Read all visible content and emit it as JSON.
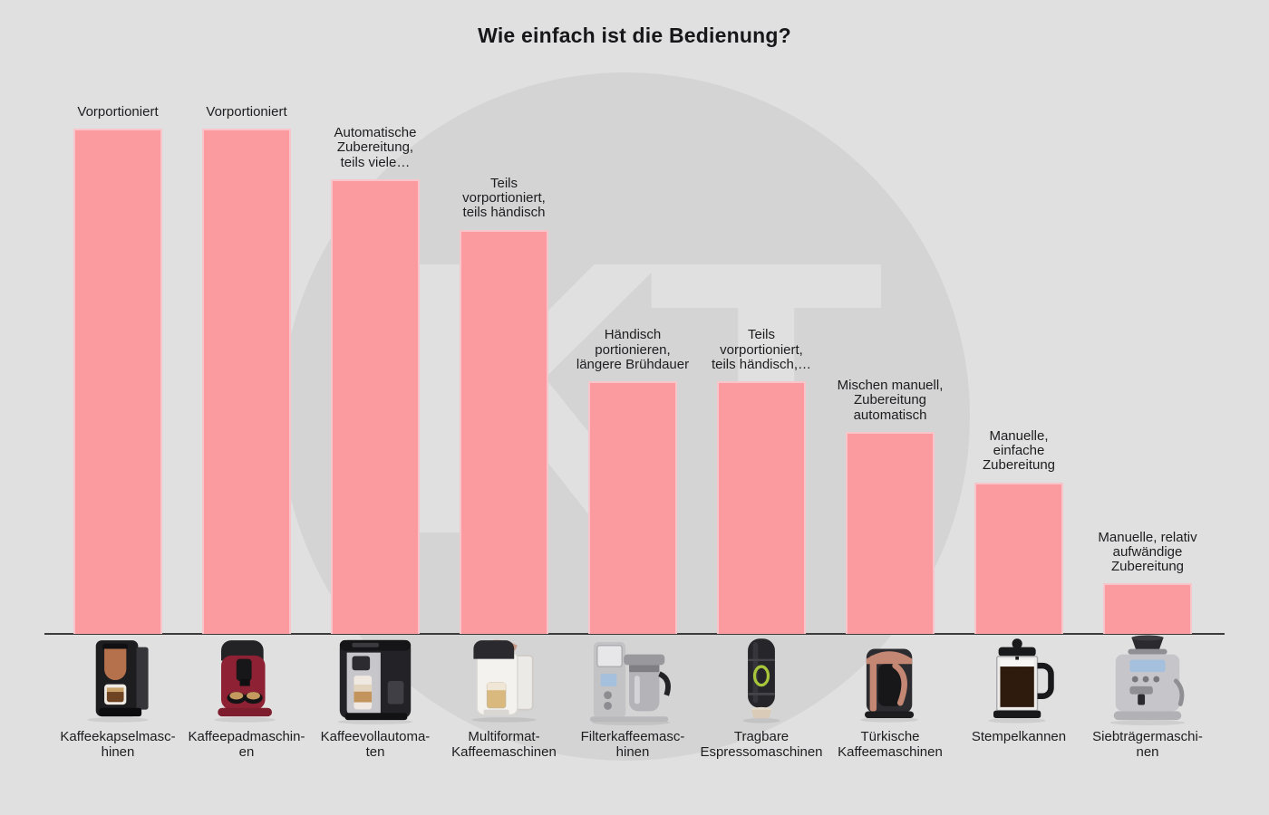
{
  "chart_data": {
    "type": "bar",
    "title": "Wie einfach ist die Bedienung?",
    "categories": [
      "Kaffeekapselmaschinen",
      "Kaffeepadmaschinen",
      "Kaffeevollautomaten",
      "Multiformat-Kaffeemaschinen",
      "Filterkaffeemaschinen",
      "Tragbare Espressomaschinen",
      "Türkische Kaffeemaschinen",
      "Stempelkannen",
      "Siebträgermaschinen"
    ],
    "categories_display": [
      "Kaffeekapselmasc-\nhinen",
      "Kaffeepadmaschin-\nen",
      "Kaffeevollautoma-\nten",
      "Multiformat-\nKaffeemaschinen",
      "Filterkaffeemasc-\nhinen",
      "Tragbare\nEspressomaschinen",
      "Türkische\nKaffeemaschinen",
      "Stempelkannen",
      "Siebträgermaschi-\nnen"
    ],
    "bar_labels": [
      "Vorportioniert",
      "Vorportioniert",
      "Automatische\nZubereitung,\nteils viele…",
      "Teils\nvorportioniert,\nteils händisch",
      "Händisch\nportionieren,\nlängere Brühdauer",
      "Teils\nvorportioniert,\nteils händisch,…",
      "Mischen manuell,\nZubereitung\nautomatisch",
      "Manuelle,\neinfache\nZubereitung",
      "Manuelle, relativ\naufwändige\nZubereitung"
    ],
    "values": [
      10,
      10,
      9,
      8,
      5,
      5,
      4,
      3,
      1
    ],
    "ylim": [
      0,
      10
    ],
    "xlabel": "",
    "ylabel": "",
    "grid": false,
    "legend": false,
    "bar_color": "#fb9ba0",
    "bar_edge_color": "#f8c6ca"
  },
  "watermark": {
    "letters": "KT",
    "circle_color": "#d5d4d4",
    "letter_color": "#e1e0e0"
  },
  "colors": {
    "background": "#e1e0e0",
    "axis_line": "#3c3c3c",
    "text": "#1d1d20",
    "title": "#17171a"
  },
  "machine_images": [
    "kaffeekapselmaschine-image",
    "kaffeepadmaschine-image",
    "kaffeevollautomat-image",
    "multiformat-kaffeemaschine-image",
    "filterkaffeemaschine-image",
    "tragbare-espressomaschine-image",
    "tuerkische-kaffeemaschine-image",
    "stempelkanne-image",
    "siebtraegermaschine-image"
  ]
}
